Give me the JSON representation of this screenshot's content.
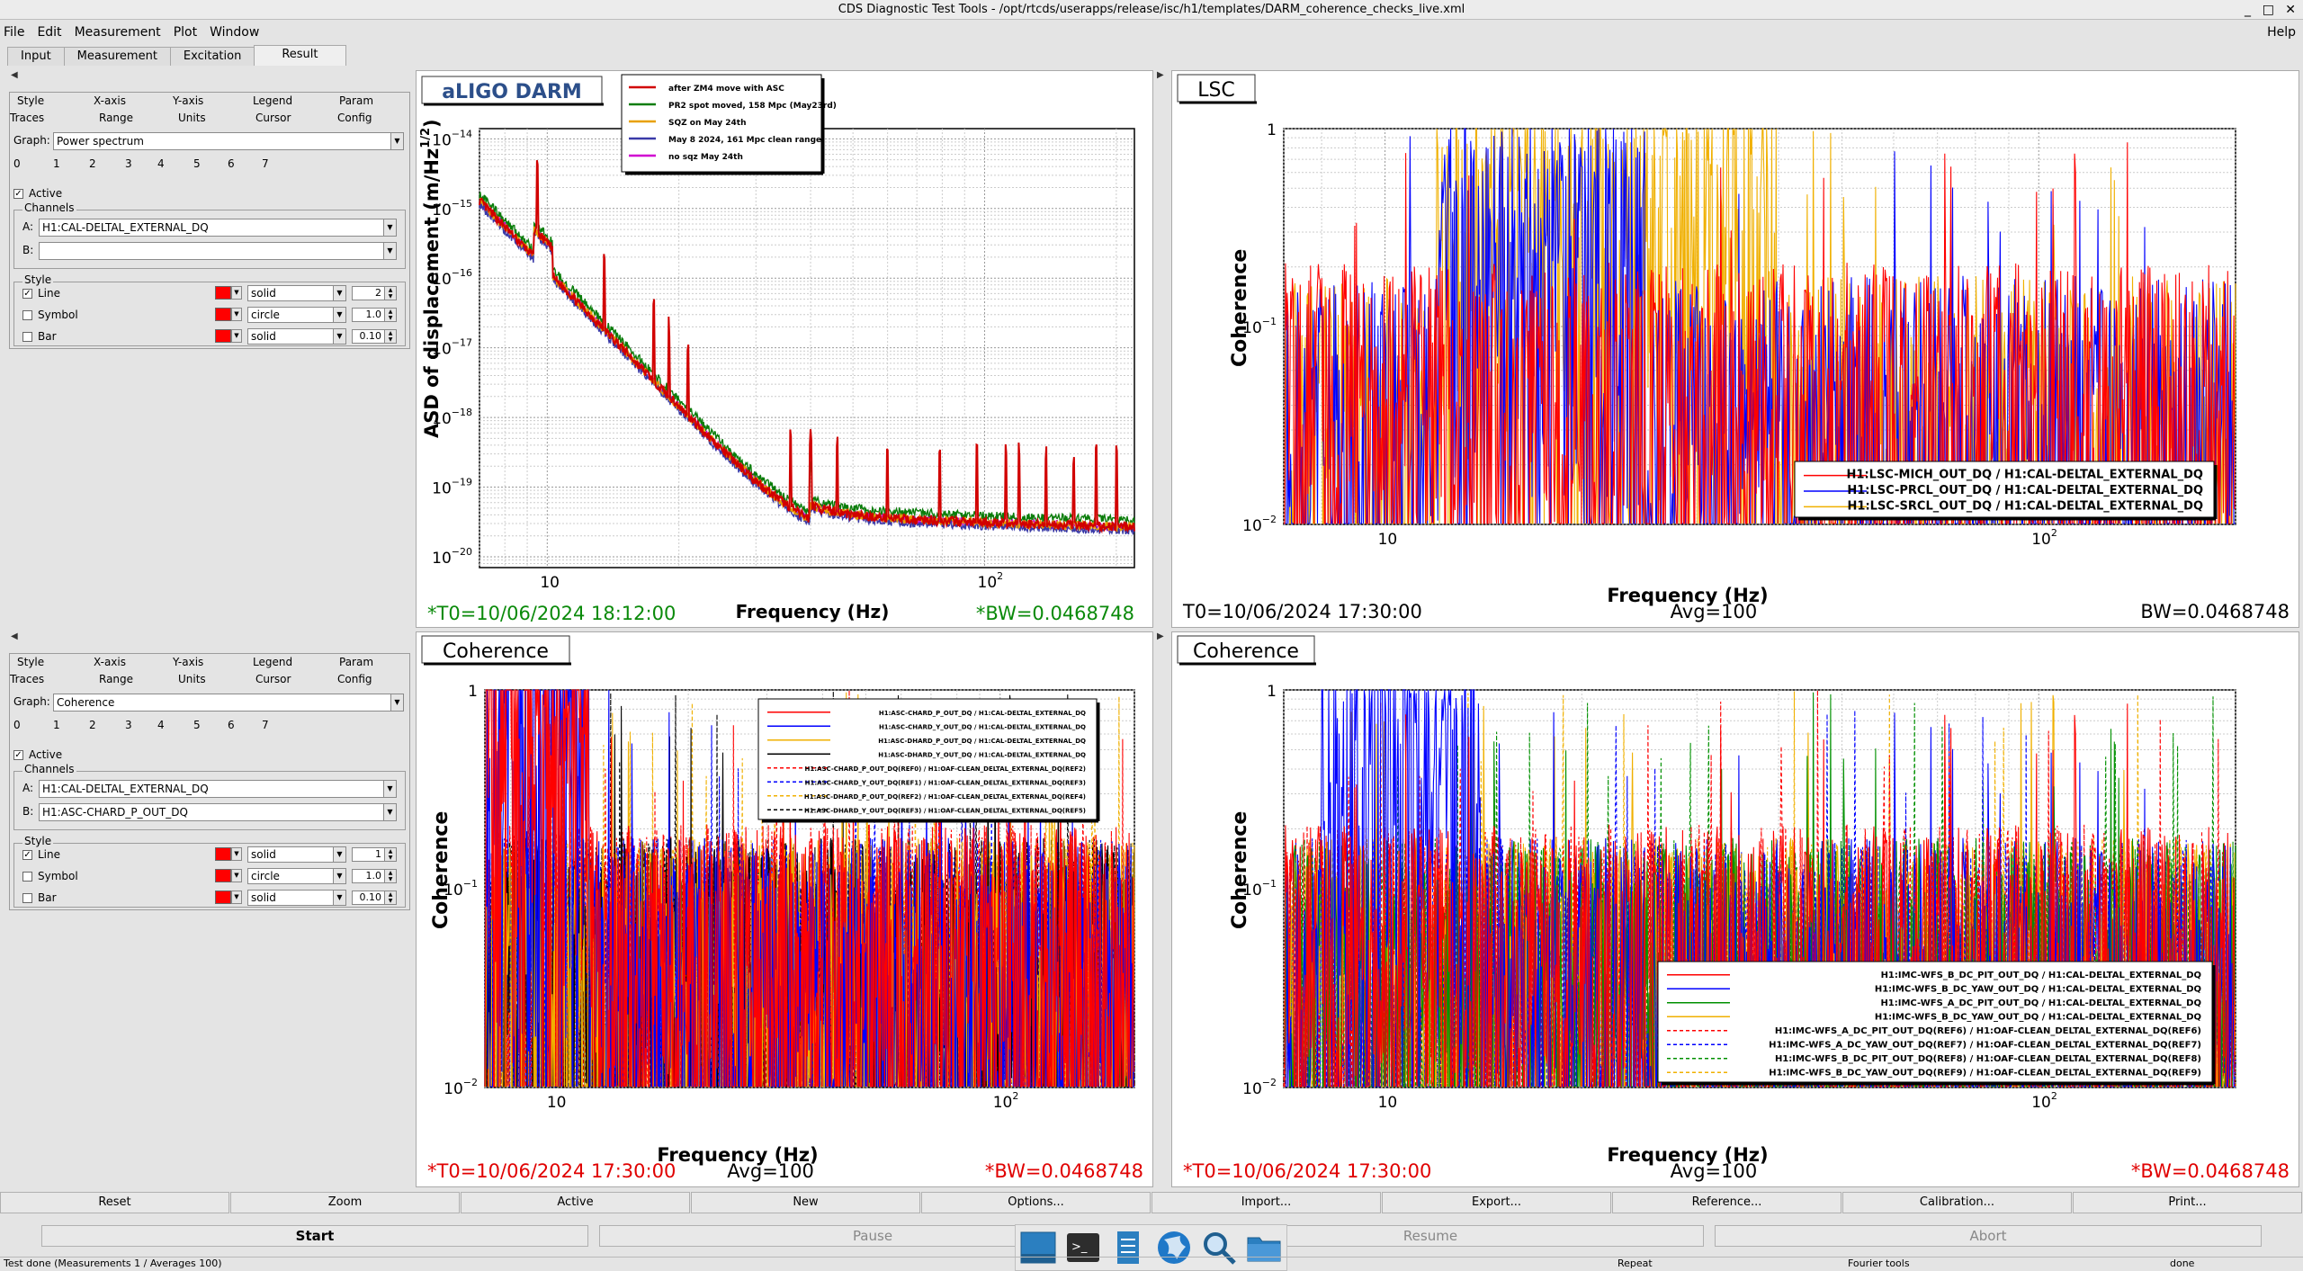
{
  "window": {
    "title": "CDS Diagnostic Test Tools - /opt/rtcds/userapps/release/isc/h1/templates/DARM_coherence_checks_live.xml",
    "controls": [
      "_",
      "□",
      "✕"
    ]
  },
  "menu": {
    "items": [
      "File",
      "Edit",
      "Measurement",
      "Plot",
      "Window"
    ],
    "help": "Help"
  },
  "tabs": [
    "Input",
    "Measurement",
    "Excitation",
    "Result"
  ],
  "panel_tabs": {
    "row1": [
      "Style",
      "X-axis",
      "Y-axis",
      "Legend",
      "Param"
    ],
    "row2": [
      "Traces",
      "Range",
      "Units",
      "Cursor",
      "Config"
    ]
  },
  "labels": {
    "graph": "Graph:",
    "active": "Active",
    "channels": "Channels",
    "a": "A:",
    "b": "B:",
    "style": "Style",
    "line": "Line",
    "symbol": "Symbol",
    "bar": "Bar"
  },
  "trace_numbers": [
    "0",
    "1",
    "2",
    "3",
    "4",
    "5",
    "6",
    "7"
  ],
  "panels": [
    {
      "graph": "Power spectrum",
      "chan_a": "H1:CAL-DELTAL_EXTERNAL_DQ",
      "chan_b": "",
      "line_style": "solid",
      "line_width": "2",
      "symbol_style": "circle",
      "symbol_size": "1.0",
      "bar_style": "solid",
      "bar_width": "0.10"
    },
    {
      "graph": "Coherence",
      "chan_a": "H1:CAL-DELTAL_EXTERNAL_DQ",
      "chan_b": "H1:ASC-CHARD_P_OUT_DQ",
      "line_style": "solid",
      "line_width": "1",
      "symbol_style": "circle",
      "symbol_size": "1.0",
      "bar_style": "solid",
      "bar_width": "0.10"
    }
  ],
  "plots": {
    "darm": {
      "title": "aLIGO DARM",
      "ylabel": "ASD of displacement (m/Hz",
      "ylabel_sup": "1/2",
      "ylabel_end": ")",
      "xlabel": "Frequency (Hz)",
      "yticks": [
        "10",
        "10",
        "10",
        "10",
        "10",
        "10",
        "10"
      ],
      "yexp": [
        "−14",
        "−15",
        "−16",
        "−17",
        "−18",
        "−19",
        "−20"
      ],
      "xticks": [
        "10",
        "10"
      ],
      "xexp": [
        "",
        "2"
      ],
      "t0": "*T0=10/06/2024 18:12:00",
      "bw": "*BW=0.0468748",
      "legend": [
        "after ZM4 move with ASC",
        "PR2 spot moved, 158 Mpc (May23rd)",
        "SQZ on May 24th",
        "May 8 2024, 161 Mpc clean range",
        "no sqz May 24th"
      ],
      "colors": [
        "#d10000",
        "#0a7d0a",
        "#e8a000",
        "#3a3aa8",
        "#d000d0"
      ]
    },
    "lsc": {
      "title": "LSC",
      "ylabel": "Coherence",
      "xlabel": "Frequency (Hz)",
      "yticks": [
        "1",
        "10",
        "10"
      ],
      "yexp": [
        "",
        "−1",
        "−2"
      ],
      "xticks": [
        "10",
        "10"
      ],
      "xexp": [
        "",
        "2"
      ],
      "t0": "T0=10/06/2024 17:30:00",
      "avg": "Avg=100",
      "bw": "BW=0.0468748",
      "legend": [
        "H1:LSC-MICH_OUT_DQ / H1:CAL-DELTAL_EXTERNAL_DQ",
        "H1:LSC-PRCL_OUT_DQ / H1:CAL-DELTAL_EXTERNAL_DQ",
        "H1:LSC-SRCL_OUT_DQ / H1:CAL-DELTAL_EXTERNAL_DQ"
      ],
      "colors": [
        "#ff0000",
        "#0000ff",
        "#f0b000"
      ]
    },
    "asc": {
      "title": "Coherence",
      "ylabel": "Coherence",
      "xlabel": "Frequency (Hz)",
      "yticks": [
        "1",
        "10",
        "10"
      ],
      "yexp": [
        "",
        "−1",
        "−2"
      ],
      "xticks": [
        "10",
        "10"
      ],
      "xexp": [
        "",
        "2"
      ],
      "t0": "*T0=10/06/2024 17:30:00",
      "avg": "Avg=100",
      "bw": "*BW=0.0468748",
      "legend": [
        "H1:ASC-CHARD_P_OUT_DQ / H1:CAL-DELTAL_EXTERNAL_DQ",
        "H1:ASC-CHARD_Y_OUT_DQ / H1:CAL-DELTAL_EXTERNAL_DQ",
        "H1:ASC-DHARD_P_OUT_DQ / H1:CAL-DELTAL_EXTERNAL_DQ",
        "H1:ASC-DHARD_Y_OUT_DQ / H1:CAL-DELTAL_EXTERNAL_DQ",
        "H1:ASC-CHARD_P_OUT_DQ(REF0) / H1:OAF-CLEAN_DELTAL_EXTERNAL_DQ(REF2)",
        "H1:ASC-CHARD_Y_OUT_DQ(REF1) / H1:OAF-CLEAN_DELTAL_EXTERNAL_DQ(REF3)",
        "H1:ASC-DHARD_P_OUT_DQ(REF2) / H1:OAF-CLEAN_DELTAL_EXTERNAL_DQ(REF4)",
        "H1:ASC-DHARD_Y_OUT_DQ(REF3) / H1:OAF-CLEAN_DELTAL_EXTERNAL_DQ(REF5)"
      ],
      "colors": [
        "#ff0000",
        "#0000ff",
        "#f0b000",
        "#000000",
        "#ff0000",
        "#0000ff",
        "#f0b000",
        "#000000"
      ]
    },
    "imc": {
      "title": "Coherence",
      "ylabel": "Coherence",
      "xlabel": "Frequency (Hz)",
      "yticks": [
        "1",
        "10",
        "10"
      ],
      "yexp": [
        "",
        "−1",
        "−2"
      ],
      "xticks": [
        "10",
        "10"
      ],
      "xexp": [
        "",
        "2"
      ],
      "t0": "*T0=10/06/2024 17:30:00",
      "avg": "Avg=100",
      "bw": "*BW=0.0468748",
      "legend": [
        "H1:IMC-WFS_B_DC_PIT_OUT_DQ / H1:CAL-DELTAL_EXTERNAL_DQ",
        "H1:IMC-WFS_B_DC_YAW_OUT_DQ / H1:CAL-DELTAL_EXTERNAL_DQ",
        "H1:IMC-WFS_A_DC_PIT_OUT_DQ / H1:CAL-DELTAL_EXTERNAL_DQ",
        "H1:IMC-WFS_B_DC_YAW_OUT_DQ / H1:CAL-DELTAL_EXTERNAL_DQ",
        "H1:IMC-WFS_A_DC_PIT_OUT_DQ(REF6) / H1:OAF-CLEAN_DELTAL_EXTERNAL_DQ(REF6)",
        "H1:IMC-WFS_A_DC_YAW_OUT_DQ(REF7) / H1:OAF-CLEAN_DELTAL_EXTERNAL_DQ(REF7)",
        "H1:IMC-WFS_B_DC_PIT_OUT_DQ(REF8) / H1:OAF-CLEAN_DELTAL_EXTERNAL_DQ(REF8)",
        "H1:IMC-WFS_B_DC_YAW_OUT_DQ(REF9) / H1:OAF-CLEAN_DELTAL_EXTERNAL_DQ(REF9)"
      ],
      "colors": [
        "#ff0000",
        "#0000ff",
        "#009000",
        "#f0b000",
        "#ff0000",
        "#0000ff",
        "#009000",
        "#f0b000"
      ]
    }
  },
  "buttons": [
    "Reset",
    "Zoom",
    "Active",
    "New",
    "Options...",
    "Import...",
    "Export...",
    "Reference...",
    "Calibration...",
    "Print..."
  ],
  "controls": [
    "Start",
    "Pause",
    "Resume",
    "Abort"
  ],
  "status": {
    "text": "Test done (Measurements 1 / Averages 100)",
    "repeat": "Repeat",
    "fourier": "Fourier tools",
    "done": "done"
  }
}
